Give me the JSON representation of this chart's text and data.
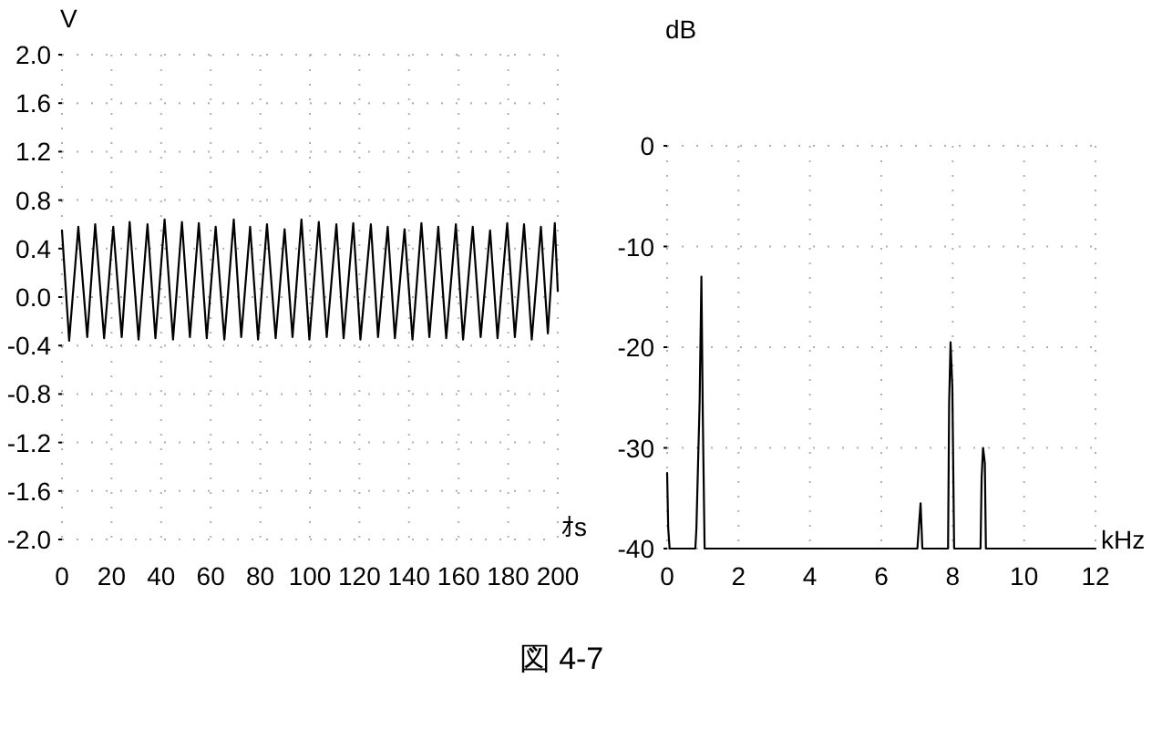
{
  "chart_data": [
    {
      "type": "line",
      "ylabel": "V",
      "xlabel": "ｵs",
      "color": "#000000",
      "grid": true,
      "xlim": [
        0,
        200
      ],
      "ylim": [
        -2,
        2
      ],
      "xticks": [
        0,
        20,
        40,
        60,
        80,
        100,
        120,
        140,
        160,
        180,
        200
      ],
      "yticks": [
        {
          "value": -2,
          "label": "-2.0"
        },
        -1.6,
        -1.2,
        -0.8,
        -0.4,
        {
          "value": 0,
          "label": "0.0"
        },
        0.4,
        0.8,
        1.2,
        1.6,
        {
          "value": 2,
          "label": "2.0"
        }
      ],
      "x": [
        0,
        2.9,
        6.6,
        10.2,
        13.4,
        17.0,
        20.7,
        24.1,
        27.3,
        30.9,
        34.5,
        37.7,
        41.4,
        44.8,
        48.4,
        51.6,
        55.2,
        58.4,
        62.0,
        65.5,
        69.3,
        72.3,
        75.9,
        79.1,
        82.7,
        86.2,
        89.8,
        93.0,
        96.6,
        99.8,
        103.6,
        106.8,
        110.7,
        113.6,
        117.5,
        120.4,
        124.6,
        127.5,
        131.4,
        134.3,
        138.2,
        141.4,
        145.0,
        148.2,
        151.8,
        155.0,
        158.9,
        161.8,
        165.7,
        168.9,
        172.7,
        175.7,
        179.6,
        182.7,
        186.4,
        189.5,
        193.2,
        196.0,
        198.8,
        200
      ],
      "values": [
        0.55,
        -0.36,
        0.58,
        -0.33,
        0.6,
        -0.34,
        0.58,
        -0.33,
        0.62,
        -0.35,
        0.6,
        -0.34,
        0.64,
        -0.35,
        0.62,
        -0.33,
        0.61,
        -0.34,
        0.58,
        -0.35,
        0.64,
        -0.33,
        0.58,
        -0.35,
        0.6,
        -0.34,
        0.56,
        -0.33,
        0.64,
        -0.35,
        0.62,
        -0.33,
        0.6,
        -0.34,
        0.61,
        -0.35,
        0.6,
        -0.33,
        0.58,
        -0.34,
        0.56,
        -0.35,
        0.61,
        -0.33,
        0.58,
        -0.34,
        0.6,
        -0.35,
        0.58,
        -0.33,
        0.55,
        -0.34,
        0.61,
        -0.33,
        0.6,
        -0.35,
        0.58,
        -0.3,
        0.61,
        0.05
      ],
      "annotations": [
        "図 4-7"
      ]
    },
    {
      "type": "line",
      "ylabel": "dB",
      "xlabel": "kHz",
      "color": "#000000",
      "grid": true,
      "xlim": [
        0,
        12
      ],
      "ylim": [
        -40,
        0
      ],
      "xticks": [
        0,
        2,
        4,
        6,
        8,
        10,
        12
      ],
      "yticks": [
        -40,
        -30,
        -20,
        -10,
        0
      ],
      "x": [
        0,
        0.03,
        0.07,
        0.79,
        0.82,
        0.91,
        0.96,
        1.0,
        1.05,
        7.01,
        7.05,
        7.1,
        7.15,
        7.87,
        7.9,
        7.94,
        7.99,
        8.04,
        8.78,
        8.81,
        8.85,
        8.9,
        8.93,
        12
      ],
      "values": [
        -32.5,
        -38,
        -40,
        -40,
        -38,
        -25.5,
        -13,
        -27,
        -40,
        -40,
        -38,
        -35.5,
        -40,
        -40,
        -25.5,
        -19.5,
        -24,
        -40,
        -40,
        -33,
        -30,
        -31.5,
        -40,
        -40
      ]
    }
  ]
}
